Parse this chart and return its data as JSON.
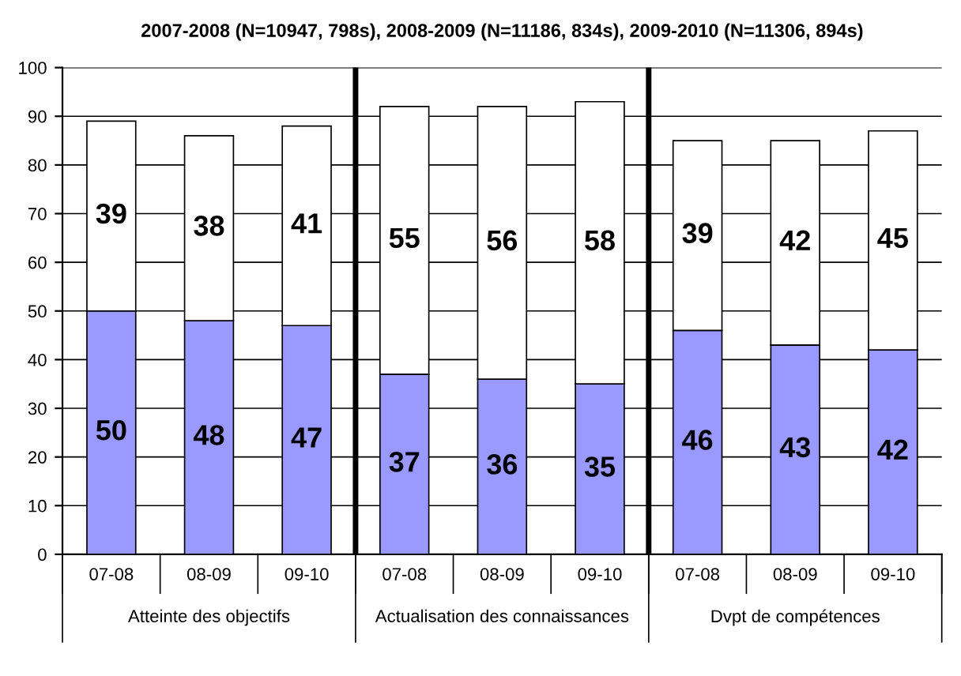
{
  "chart_data": {
    "type": "bar",
    "title": "2007-2008 (N=10947, 798s), 2008-2009 (N=11186, 834s), 2009-2010 (N=11306, 894s)",
    "categories": [
      "07-08",
      "08-09",
      "09-10",
      "07-08",
      "08-09",
      "09-10",
      "07-08",
      "08-09",
      "09-10"
    ],
    "stacked": true,
    "data_labels": true,
    "series": [
      {
        "color": "#9999ff",
        "values": [
          50,
          48,
          47,
          37,
          36,
          35,
          46,
          43,
          42
        ]
      },
      {
        "color": "#ffffff",
        "values": [
          39,
          38,
          41,
          55,
          56,
          58,
          39,
          42,
          45
        ]
      }
    ],
    "ylim": [
      0,
      100
    ],
    "yticks": [
      0,
      10,
      20,
      30,
      40,
      50,
      60,
      70,
      80,
      90,
      100
    ],
    "grid": "y",
    "annotations": [
      "Atteinte des objectifs",
      "Actualisation des connaissances",
      "Dvpt de compétences"
    ]
  }
}
